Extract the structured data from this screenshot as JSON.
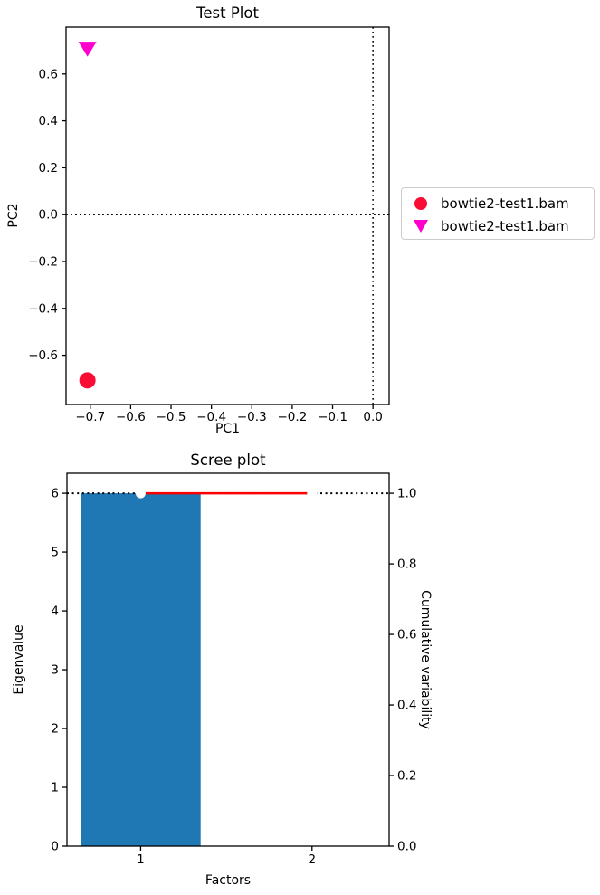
{
  "figure": {
    "background": "#ffffff"
  },
  "chart_data": [
    {
      "type": "scatter",
      "title": "Test Plot",
      "xlabel": "PC1",
      "ylabel": "PC2",
      "xlim": [
        -0.76,
        0.04
      ],
      "ylim": [
        -0.81,
        0.8
      ],
      "xticks": [
        -0.7,
        -0.6,
        -0.5,
        -0.4,
        -0.3,
        -0.2,
        -0.1,
        0.0
      ],
      "xtick_labels": [
        "−0.7",
        "−0.6",
        "−0.5",
        "−0.4",
        "−0.3",
        "−0.2",
        "−0.1",
        "0.0"
      ],
      "yticks": [
        -0.6,
        -0.4,
        -0.2,
        0.0,
        0.2,
        0.4,
        0.6
      ],
      "ytick_labels": [
        "−0.6",
        "−0.4",
        "−0.2",
        "0.0",
        "0.2",
        "0.4",
        "0.6"
      ],
      "reference_lines": {
        "vline_x": 0.0,
        "hline_y": 0.0,
        "style": "dotted",
        "color": "#000000"
      },
      "series": [
        {
          "name": "bowtie2-test1.bam",
          "marker": "circle",
          "color": "#f90d34",
          "points": [
            {
              "x": -0.707,
              "y": -0.707
            }
          ]
        },
        {
          "name": "bowtie2-test1.bam",
          "marker": "triangle-down",
          "color": "#ff00cc",
          "points": [
            {
              "x": -0.707,
              "y": 0.707
            }
          ]
        }
      ],
      "legend": {
        "position": "outside-right",
        "entries": [
          "bowtie2-test1.bam",
          "bowtie2-test1.bam"
        ]
      }
    },
    {
      "type": "bar-line-dual-axis",
      "title": "Scree plot",
      "xlabel": "Factors",
      "ylabel_left": "Eigenvalue",
      "ylabel_right": "Cumulative variability",
      "categories": [
        1,
        2
      ],
      "xtick_labels": [
        "1",
        "2"
      ],
      "bar_values": [
        6,
        0
      ],
      "bar_color": "#1f77b4",
      "bar_width": 0.7,
      "line_x": [
        1,
        2
      ],
      "line_values": [
        1.0,
        1.0
      ],
      "line_color": "#ff0000",
      "marker_face": "#ffffff",
      "dotted_hline_right": 1.0,
      "xlim": [
        0.57,
        2.45
      ],
      "ylim_left": [
        0,
        6.34
      ],
      "ylim_right": [
        0,
        1.0567
      ],
      "yticks_left": [
        0,
        1,
        2,
        3,
        4,
        5,
        6
      ],
      "ytick_labels_left": [
        "0",
        "1",
        "2",
        "3",
        "4",
        "5",
        "6"
      ],
      "yticks_right": [
        0.0,
        0.2,
        0.4,
        0.6,
        0.8,
        1.0
      ],
      "ytick_labels_right": [
        "0.0",
        "0.2",
        "0.4",
        "0.6",
        "0.8",
        "1.0"
      ],
      "grid": false
    }
  ]
}
